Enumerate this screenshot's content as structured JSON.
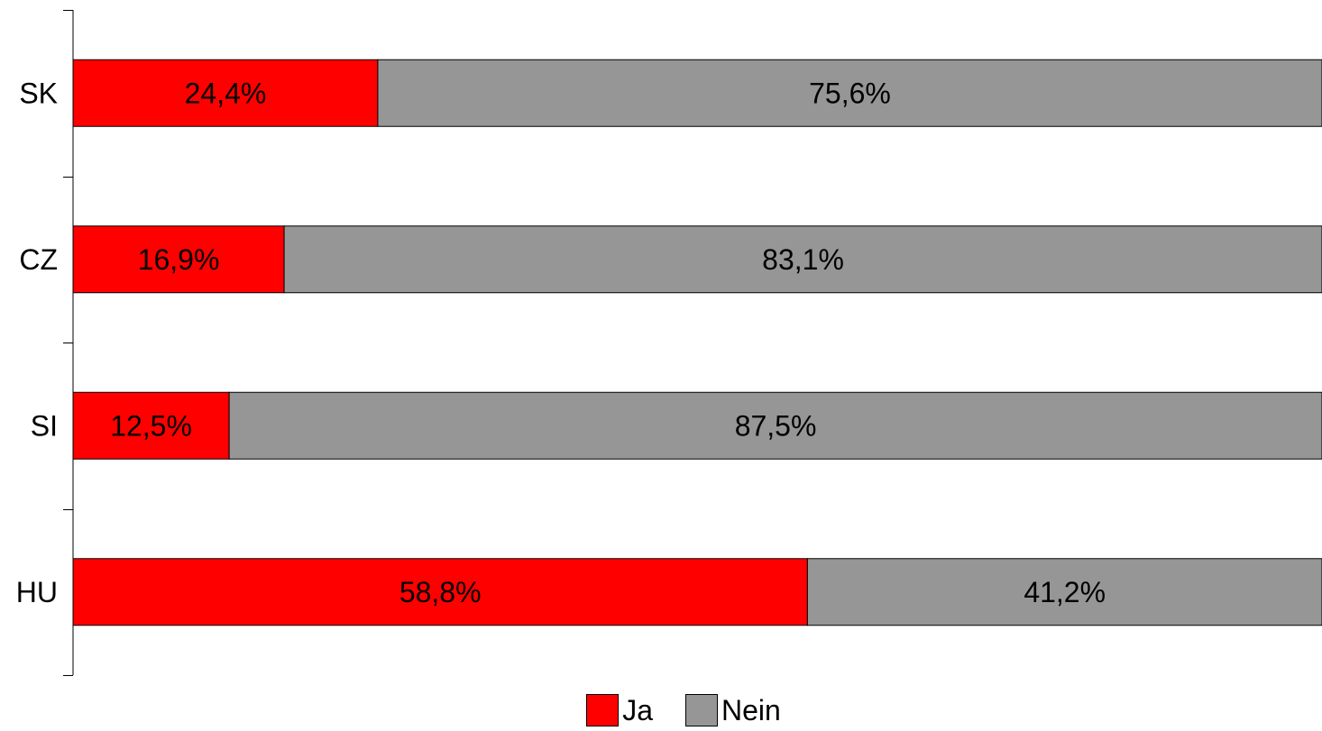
{
  "chart_data": {
    "type": "bar",
    "orientation": "horizontal",
    "stacked": true,
    "normalized_percent": true,
    "categories": [
      "SK",
      "CZ",
      "SI",
      "HU"
    ],
    "series": [
      {
        "name": "Ja",
        "color": "#ff0000",
        "values": [
          24.4,
          16.9,
          12.5,
          58.8
        ],
        "labels": [
          "24,4%",
          "16,9%",
          "12,5%",
          "58,8%"
        ]
      },
      {
        "name": "Nein",
        "color": "#969696",
        "values": [
          75.6,
          83.1,
          87.5,
          41.2
        ],
        "labels": [
          "75,6%",
          "83,1%",
          "87,5%",
          "41,2%"
        ]
      }
    ],
    "xlim": [
      0,
      100
    ],
    "grid": false,
    "legend_position": "bottom",
    "title": "",
    "xlabel": "",
    "ylabel": ""
  }
}
